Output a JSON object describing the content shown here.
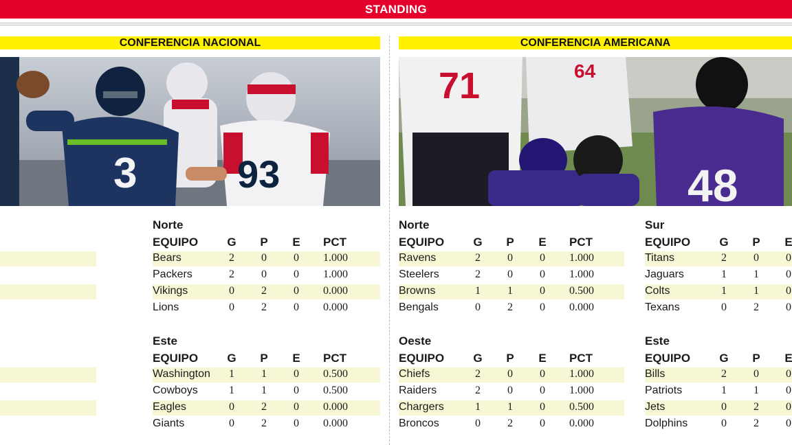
{
  "header": {
    "title": "STANDING"
  },
  "conferences": [
    {
      "title": "CONFERENCIA NACIONAL",
      "photo": "seahawks-vs-patriots-photo",
      "divisions": [
        {
          "name": "",
          "headers": [
            "EQUIPO",
            "G",
            "P",
            "E",
            "PCT"
          ],
          "rows": [
            {
              "team": "",
              "g": "",
              "p": "0",
              "e": "0",
              "pct": "1.000"
            },
            {
              "team": "",
              "g": "",
              "p": "0",
              "e": "0",
              "pct": "1.000"
            },
            {
              "team": "",
              "g": "",
              "p": "0",
              "e": "0",
              "pct": "1.000"
            },
            {
              "team": "",
              "g": "",
              "p": "1",
              "e": "0",
              "pct": "0.500"
            }
          ]
        },
        {
          "name": "Norte",
          "headers": [
            "EQUIPO",
            "G",
            "P",
            "E",
            "PCT"
          ],
          "rows": [
            {
              "team": "Bears",
              "g": "2",
              "p": "0",
              "e": "0",
              "pct": "1.000"
            },
            {
              "team": "Packers",
              "g": "2",
              "p": "0",
              "e": "0",
              "pct": "1.000"
            },
            {
              "team": "Vikings",
              "g": "0",
              "p": "2",
              "e": "0",
              "pct": "0.000"
            },
            {
              "team": "Lions",
              "g": "0",
              "p": "2",
              "e": "0",
              "pct": "0.000"
            }
          ]
        },
        {
          "name": "",
          "headers": [
            "EQUIPO",
            "G",
            "P",
            "E",
            "PCT"
          ],
          "rows": [
            {
              "team": "",
              "g": "",
              "p": "1",
              "e": "0",
              "pct": "0.500"
            },
            {
              "team": "",
              "g": "",
              "p": "1",
              "e": "0",
              "pct": "0.500"
            },
            {
              "team": "",
              "g": "",
              "p": "2",
              "e": "0",
              "pct": "0.000"
            },
            {
              "team": "",
              "g": "",
              "p": "2",
              "e": "0",
              "pct": "0.000"
            }
          ]
        },
        {
          "name": "Este",
          "headers": [
            "EQUIPO",
            "G",
            "P",
            "E",
            "PCT"
          ],
          "rows": [
            {
              "team": "Washington",
              "g": "1",
              "p": "1",
              "e": "0",
              "pct": "0.500"
            },
            {
              "team": "Cowboys",
              "g": "1",
              "p": "1",
              "e": "0",
              "pct": "0.500"
            },
            {
              "team": "Eagles",
              "g": "0",
              "p": "2",
              "e": "0",
              "pct": "0.000"
            },
            {
              "team": "Giants",
              "g": "0",
              "p": "2",
              "e": "0",
              "pct": "0.000"
            }
          ]
        }
      ]
    },
    {
      "title": "CONFERENCIA AMERICANA",
      "photo": "ravens-vs-texans-photo",
      "divisions": [
        {
          "name": "Norte",
          "headers": [
            "EQUIPO",
            "G",
            "P",
            "E",
            "PCT"
          ],
          "rows": [
            {
              "team": "Ravens",
              "g": "2",
              "p": "0",
              "e": "0",
              "pct": "1.000"
            },
            {
              "team": "Steelers",
              "g": "2",
              "p": "0",
              "e": "0",
              "pct": "1.000"
            },
            {
              "team": "Browns",
              "g": "1",
              "p": "1",
              "e": "0",
              "pct": "0.500"
            },
            {
              "team": "Bengals",
              "g": "0",
              "p": "2",
              "e": "0",
              "pct": "0.000"
            }
          ]
        },
        {
          "name": "Sur",
          "headers": [
            "EQUIPO",
            "G",
            "P",
            "E",
            "PCT"
          ],
          "rows": [
            {
              "team": "Titans",
              "g": "2",
              "p": "0",
              "e": "0",
              "pct": ""
            },
            {
              "team": "Jaguars",
              "g": "1",
              "p": "1",
              "e": "0",
              "pct": ""
            },
            {
              "team": "Colts",
              "g": "1",
              "p": "1",
              "e": "0",
              "pct": ""
            },
            {
              "team": "Texans",
              "g": "0",
              "p": "2",
              "e": "0",
              "pct": ""
            }
          ]
        },
        {
          "name": "Oeste",
          "headers": [
            "EQUIPO",
            "G",
            "P",
            "E",
            "PCT"
          ],
          "rows": [
            {
              "team": "Chiefs",
              "g": "2",
              "p": "0",
              "e": "0",
              "pct": "1.000"
            },
            {
              "team": "Raiders",
              "g": "2",
              "p": "0",
              "e": "0",
              "pct": "1.000"
            },
            {
              "team": "Chargers",
              "g": "1",
              "p": "1",
              "e": "0",
              "pct": "0.500"
            },
            {
              "team": "Broncos",
              "g": "0",
              "p": "2",
              "e": "0",
              "pct": "0.000"
            }
          ]
        },
        {
          "name": "Este",
          "headers": [
            "EQUIPO",
            "G",
            "P",
            "E",
            "PCT"
          ],
          "rows": [
            {
              "team": "Bills",
              "g": "2",
              "p": "0",
              "e": "0",
              "pct": ""
            },
            {
              "team": "Patriots",
              "g": "1",
              "p": "1",
              "e": "0",
              "pct": ""
            },
            {
              "team": "Jets",
              "g": "0",
              "p": "2",
              "e": "0",
              "pct": ""
            },
            {
              "team": "Dolphins",
              "g": "0",
              "p": "2",
              "e": "0",
              "pct": ""
            }
          ]
        }
      ]
    }
  ],
  "colors": {
    "banner": "#e4002b",
    "conference_bar": "#fff200",
    "stripe": "#f8f7d5"
  }
}
